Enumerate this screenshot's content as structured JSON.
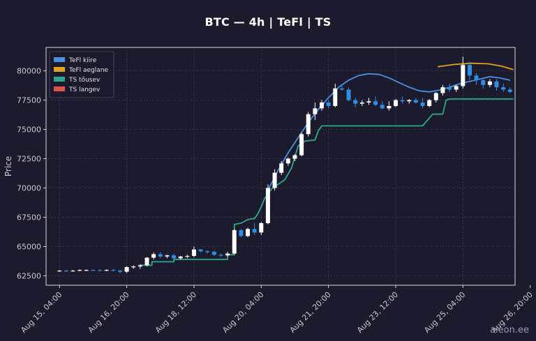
{
  "chart_data": {
    "type": "candlestick",
    "title": "BTC — 4h  |  TeFl  |  TS",
    "ylabel": "Price",
    "xlabel": "",
    "ylim": [
      61700,
      82000
    ],
    "x_range_hours": [
      -8,
      271
    ],
    "yticks": [
      62500,
      65000,
      67500,
      70000,
      72500,
      75000,
      77500,
      80000
    ],
    "ytick_labels": [
      "62500",
      "65000",
      "67500",
      "70000",
      "72500",
      "75000",
      "77500",
      "80000"
    ],
    "xticks": [
      {
        "h": 0,
        "label": "Aug 15, 04:00"
      },
      {
        "h": 40,
        "label": "Aug 16, 20:00"
      },
      {
        "h": 80,
        "label": "Aug 18, 12:00"
      },
      {
        "h": 120,
        "label": "Aug 20, 04:00"
      },
      {
        "h": 160,
        "label": "Aug 21, 20:00"
      },
      {
        "h": 200,
        "label": "Aug 23, 12:00"
      },
      {
        "h": 240,
        "label": "Aug 25, 04:00"
      },
      {
        "h": 280,
        "label": "Aug 26, 20:00"
      }
    ],
    "grid": true,
    "legend_position": "top-left",
    "legend": [
      {
        "label": "TeFl kiire",
        "color": "#4a90e2"
      },
      {
        "label": "TeFl aeglane",
        "color": "#e0a020"
      },
      {
        "label": "TS tõusev",
        "color": "#2ea88a"
      },
      {
        "label": "TS langev",
        "color": "#e05050"
      }
    ],
    "colors": {
      "up": "#ffffff",
      "down": "#2f8fe8"
    },
    "candles": [
      [
        0,
        62900,
        63000,
        62850,
        62950
      ],
      [
        4,
        62950,
        63000,
        62850,
        62900
      ],
      [
        8,
        62900,
        63000,
        62850,
        62950
      ],
      [
        12,
        62950,
        63050,
        62900,
        63000
      ],
      [
        16,
        63000,
        63050,
        62950,
        63000
      ],
      [
        20,
        63000,
        63050,
        62950,
        62980
      ],
      [
        24,
        62980,
        63050,
        62900,
        62950
      ],
      [
        28,
        62950,
        63050,
        62900,
        63000
      ],
      [
        32,
        63000,
        63100,
        62900,
        62950
      ],
      [
        36,
        62950,
        63000,
        62700,
        62850
      ],
      [
        40,
        62850,
        63300,
        62750,
        63250
      ],
      [
        44,
        63250,
        63400,
        63100,
        63300
      ],
      [
        48,
        63300,
        63500,
        63100,
        63400
      ],
      [
        52,
        63400,
        64100,
        63300,
        64050
      ],
      [
        56,
        64050,
        64500,
        63900,
        64350
      ],
      [
        60,
        64350,
        64500,
        64000,
        64150
      ],
      [
        64,
        64150,
        64300,
        64000,
        64250
      ],
      [
        68,
        64250,
        64400,
        63900,
        64000
      ],
      [
        72,
        64000,
        64200,
        63900,
        64150
      ],
      [
        76,
        64150,
        64300,
        64000,
        64200
      ],
      [
        80,
        64200,
        65000,
        64100,
        64750
      ],
      [
        84,
        64750,
        64800,
        64500,
        64600
      ],
      [
        88,
        64600,
        64700,
        64400,
        64550
      ],
      [
        92,
        64550,
        64650,
        64200,
        64300
      ],
      [
        96,
        64300,
        64400,
        64100,
        64250
      ],
      [
        100,
        64250,
        64550,
        64150,
        64400
      ],
      [
        104,
        64400,
        66500,
        64350,
        66400
      ],
      [
        108,
        66400,
        66500,
        65800,
        65900
      ],
      [
        112,
        65900,
        66600,
        65800,
        66500
      ],
      [
        116,
        66500,
        67000,
        66000,
        66200
      ],
      [
        120,
        66200,
        67100,
        66000,
        67000
      ],
      [
        124,
        67000,
        70300,
        66900,
        70000
      ],
      [
        128,
        70000,
        71600,
        69800,
        71300
      ],
      [
        132,
        71300,
        72300,
        71100,
        72100
      ],
      [
        136,
        72100,
        72600,
        71900,
        72500
      ],
      [
        140,
        72500,
        72900,
        72300,
        72800
      ],
      [
        144,
        72800,
        74700,
        72700,
        74600
      ],
      [
        148,
        74600,
        76500,
        74400,
        76300
      ],
      [
        152,
        76300,
        77300,
        75800,
        76800
      ],
      [
        156,
        76800,
        77500,
        76600,
        77300
      ],
      [
        160,
        77300,
        77500,
        76800,
        77000
      ],
      [
        164,
        77000,
        78900,
        76900,
        78500
      ],
      [
        168,
        78500,
        78800,
        78300,
        78400
      ],
      [
        172,
        78400,
        78600,
        77400,
        77500
      ],
      [
        176,
        77500,
        77700,
        76900,
        77200
      ],
      [
        180,
        77200,
        77500,
        77000,
        77300
      ],
      [
        184,
        77300,
        77700,
        77100,
        77400
      ],
      [
        188,
        77400,
        77800,
        77000,
        77100
      ],
      [
        192,
        77100,
        77400,
        76700,
        76800
      ],
      [
        196,
        76800,
        77400,
        76600,
        77000
      ],
      [
        200,
        77000,
        77600,
        76900,
        77500
      ],
      [
        204,
        77500,
        77800,
        77200,
        77400
      ],
      [
        208,
        77400,
        77600,
        77200,
        77500
      ],
      [
        212,
        77500,
        77700,
        77200,
        77300
      ],
      [
        216,
        77300,
        77700,
        76800,
        77000
      ],
      [
        220,
        77000,
        77600,
        76900,
        77500
      ],
      [
        224,
        77500,
        78200,
        77300,
        78100
      ],
      [
        228,
        78100,
        78800,
        77900,
        78600
      ],
      [
        232,
        78600,
        78900,
        78200,
        78400
      ],
      [
        236,
        78400,
        78800,
        78200,
        78700
      ],
      [
        240,
        78700,
        81200,
        78500,
        80500
      ],
      [
        244,
        80500,
        80800,
        79200,
        79600
      ],
      [
        248,
        79600,
        79800,
        78800,
        79200
      ],
      [
        252,
        79200,
        79400,
        78500,
        78800
      ],
      [
        256,
        78800,
        79300,
        78600,
        79100
      ],
      [
        260,
        79100,
        79300,
        78300,
        78600
      ],
      [
        264,
        78600,
        78900,
        78200,
        78400
      ],
      [
        268,
        78400,
        78600,
        78100,
        78200
      ]
    ],
    "series": [
      {
        "name": "TeFl kiire",
        "color": "#4a90e2",
        "points": [
          [
            124,
            69800
          ],
          [
            130,
            71500
          ],
          [
            136,
            73000
          ],
          [
            142,
            74300
          ],
          [
            148,
            75600
          ],
          [
            154,
            76700
          ],
          [
            160,
            77700
          ],
          [
            166,
            78600
          ],
          [
            172,
            79200
          ],
          [
            178,
            79600
          ],
          [
            184,
            79750
          ],
          [
            190,
            79700
          ],
          [
            196,
            79400
          ],
          [
            202,
            79000
          ],
          [
            208,
            78600
          ],
          [
            214,
            78300
          ],
          [
            220,
            78200
          ],
          [
            226,
            78350
          ],
          [
            232,
            78600
          ],
          [
            238,
            78900
          ],
          [
            244,
            79100
          ],
          [
            250,
            79300
          ],
          [
            256,
            79500
          ],
          [
            262,
            79400
          ],
          [
            268,
            79200
          ]
        ]
      },
      {
        "name": "TeFl aeglane",
        "color": "#e0a020",
        "points": [
          [
            225,
            80350
          ],
          [
            235,
            80550
          ],
          [
            245,
            80650
          ],
          [
            255,
            80600
          ],
          [
            263,
            80400
          ],
          [
            270,
            80100
          ]
        ]
      },
      {
        "name": "TS tõusev",
        "color": "#2ea88a",
        "points": [
          [
            48,
            63400
          ],
          [
            55,
            63400
          ],
          [
            55,
            63700
          ],
          [
            68,
            63700
          ],
          [
            68,
            63900
          ],
          [
            100,
            63900
          ],
          [
            100,
            64300
          ],
          [
            104,
            64300
          ],
          [
            104,
            66900
          ],
          [
            108,
            67000
          ],
          [
            112,
            67300
          ],
          [
            116,
            67400
          ],
          [
            118,
            67800
          ],
          [
            120,
            68400
          ],
          [
            122,
            69100
          ],
          [
            126,
            69900
          ],
          [
            130,
            70300
          ],
          [
            134,
            70700
          ],
          [
            138,
            71700
          ],
          [
            142,
            73600
          ],
          [
            146,
            74000
          ],
          [
            152,
            74100
          ],
          [
            154,
            74900
          ],
          [
            156,
            75300
          ],
          [
            204,
            75300
          ],
          [
            204,
            75300
          ],
          [
            208,
            75300
          ],
          [
            212,
            75300
          ],
          [
            216,
            75300
          ],
          [
            222,
            76300
          ],
          [
            228,
            76300
          ],
          [
            230,
            77500
          ],
          [
            232,
            77600
          ],
          [
            270,
            77600
          ]
        ]
      }
    ]
  },
  "watermark": "aieon.ee"
}
